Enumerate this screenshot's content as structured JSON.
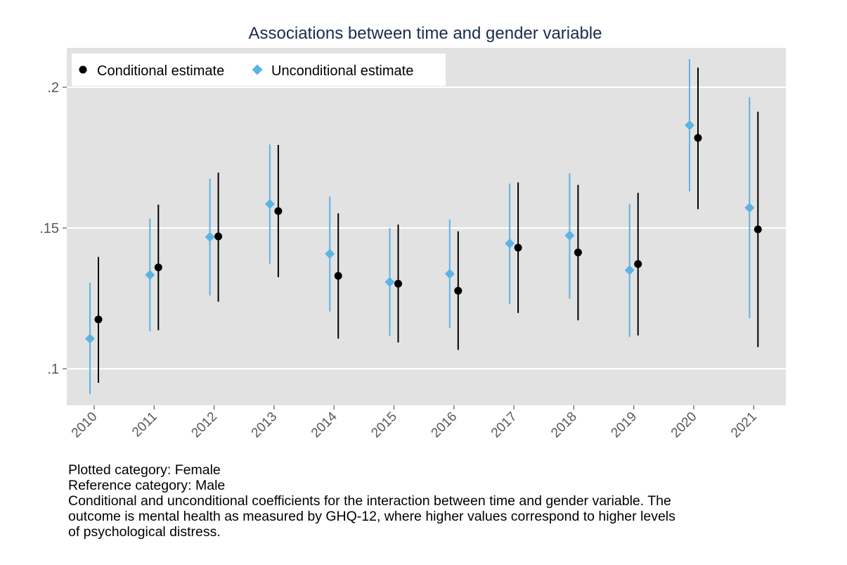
{
  "chart_data": {
    "type": "scatter",
    "title": "Associations between time and gender variable",
    "xlabel": "",
    "ylabel": "",
    "categories": [
      "2010",
      "2011",
      "2012",
      "2013",
      "2014",
      "2015",
      "2016",
      "2017",
      "2018",
      "2019",
      "2020",
      "2021"
    ],
    "ylim": [
      0.087,
      0.214
    ],
    "yticks": [
      {
        "value": 0.1,
        "label": ".1"
      },
      {
        "value": 0.15,
        "label": ".15"
      },
      {
        "value": 0.2,
        "label": ".2"
      }
    ],
    "grid": true,
    "legend_position": "top-left",
    "series": [
      {
        "name": "Conditional estimate",
        "marker": "circle",
        "color": "#000000",
        "values": [
          0.1175,
          0.136,
          0.147,
          0.156,
          0.133,
          0.1302,
          0.1277,
          0.143,
          0.1413,
          0.1372,
          0.182,
          0.1495
        ],
        "ci_low": [
          0.095,
          0.1137,
          0.1238,
          0.1325,
          0.1107,
          0.1093,
          0.1067,
          0.1198,
          0.1172,
          0.1118,
          0.1567,
          0.1077
        ],
        "ci_high": [
          0.1397,
          0.1583,
          0.1697,
          0.1795,
          0.1552,
          0.1512,
          0.1488,
          0.1662,
          0.1653,
          0.1625,
          0.207,
          0.1913
        ]
      },
      {
        "name": "Unconditional estimate",
        "marker": "diamond",
        "color": "#5bb4e5",
        "values": [
          0.1107,
          0.1333,
          0.1468,
          0.1585,
          0.1408,
          0.1308,
          0.1337,
          0.1445,
          0.1473,
          0.135,
          0.1865,
          0.1572
        ],
        "ci_low": [
          0.091,
          0.1133,
          0.126,
          0.1373,
          0.1203,
          0.1117,
          0.1145,
          0.123,
          0.1248,
          0.1113,
          0.163,
          0.118
        ],
        "ci_high": [
          0.1305,
          0.1533,
          0.1675,
          0.1797,
          0.1612,
          0.15,
          0.153,
          0.1658,
          0.1695,
          0.1585,
          0.21,
          0.1965
        ]
      }
    ]
  },
  "notes": [
    "Plotted category: Female",
    "Reference category: Male",
    "Conditional and unconditional coefficients for the interaction between time and gender variable. The",
    "outcome is mental health as measured by GHQ-12, where higher values correspond to higher levels",
    "of psychological distress."
  ],
  "colors": {
    "plot_background": "#e2e2e2",
    "gridline": "#ffffff",
    "title": "#1a2c4e",
    "axis_text": "#595959"
  }
}
